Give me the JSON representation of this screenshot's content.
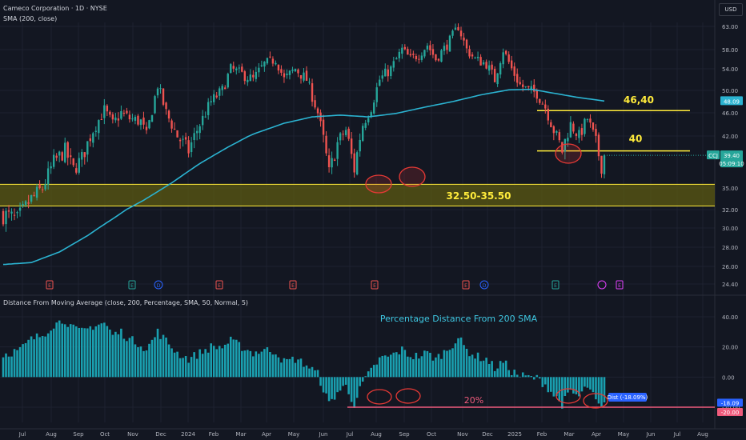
{
  "header": {
    "title": "Cameco Corporation · 1D · NYSE",
    "sma_label": "SMA (200, close)",
    "indicator_label": "Distance From Moving Average (close, 200, Percentage, SMA, 50, Normal, 5)",
    "currency": "USD"
  },
  "colors": {
    "background": "#131722",
    "up": "#26a69a",
    "down": "#ef5350",
    "sma": "#2bb3d1",
    "annotation_line": "#ffeb3b",
    "zone_fill": "#5c5a12",
    "histogram": "#1aa0b0",
    "threshold": "#ef5b7c",
    "circle": "#e53935"
  },
  "chart_data": [
    {
      "type": "candlestick",
      "y_ticks": [
        "63.00",
        "58.00",
        "54.00",
        "50.00",
        "46.00",
        "42.00",
        "35.00",
        "32.00",
        "30.00",
        "28.00",
        "26.00",
        "24.40"
      ],
      "x_ticks": [
        "Jul",
        "Aug",
        "Sep",
        "Oct",
        "Nov",
        "Dec",
        "2024",
        "Feb",
        "Mar",
        "Apr",
        "May",
        "Jun",
        "Jul",
        "Aug",
        "Sep",
        "Oct",
        "Nov",
        "Dec",
        "2025",
        "Feb",
        "Mar",
        "Apr",
        "May",
        "Jun",
        "Jul",
        "Aug"
      ],
      "price_path": [
        [
          0,
          31.5
        ],
        [
          5,
          30.8
        ],
        [
          10,
          33.5
        ],
        [
          14,
          35
        ],
        [
          18,
          38.5
        ],
        [
          22,
          40
        ],
        [
          25,
          37.5
        ],
        [
          28,
          39
        ],
        [
          32,
          43
        ],
        [
          36,
          46.5
        ],
        [
          39,
          44
        ],
        [
          42,
          46
        ],
        [
          45,
          45
        ],
        [
          49,
          44.5
        ],
        [
          51,
          42
        ],
        [
          55,
          51
        ],
        [
          58,
          46
        ],
        [
          62,
          42
        ],
        [
          66,
          40
        ],
        [
          70,
          44
        ],
        [
          74,
          48
        ],
        [
          78,
          50
        ],
        [
          81,
          54
        ],
        [
          85,
          53
        ],
        [
          89,
          52
        ],
        [
          93,
          55
        ],
        [
          97,
          56
        ],
        [
          100,
          52
        ],
        [
          104,
          54
        ],
        [
          108,
          52
        ],
        [
          112,
          46
        ],
        [
          116,
          37
        ],
        [
          119,
          41
        ],
        [
          122,
          43
        ],
        [
          125,
          37.5
        ],
        [
          128,
          44
        ],
        [
          131,
          47
        ],
        [
          134,
          52
        ],
        [
          138,
          54
        ],
        [
          142,
          58
        ],
        [
          145,
          56
        ],
        [
          148,
          57
        ],
        [
          151,
          59
        ],
        [
          154,
          56
        ],
        [
          158,
          59
        ],
        [
          162,
          63
        ],
        [
          165,
          58
        ],
        [
          168,
          56
        ],
        [
          172,
          55
        ],
        [
          175,
          52
        ],
        [
          178,
          58
        ],
        [
          181,
          54
        ],
        [
          184,
          51
        ],
        [
          187,
          50
        ],
        [
          190,
          49.5
        ],
        [
          193,
          47
        ],
        [
          196,
          43
        ],
        [
          199,
          40
        ],
        [
          202,
          44
        ],
        [
          205,
          42
        ],
        [
          208,
          45
        ],
        [
          211,
          41
        ],
        [
          213,
          38
        ],
        [
          214,
          39.4
        ]
      ],
      "sma_path": [
        [
          0,
          26.2
        ],
        [
          10,
          26.4
        ],
        [
          20,
          27.5
        ],
        [
          30,
          29.2
        ],
        [
          40,
          31.2
        ],
        [
          50,
          33.3
        ],
        [
          60,
          35.7
        ],
        [
          70,
          38.3
        ],
        [
          80,
          40.5
        ],
        [
          90,
          42.5
        ],
        [
          100,
          44.2
        ],
        [
          110,
          45.3
        ],
        [
          120,
          45.6
        ],
        [
          130,
          45.3
        ],
        [
          140,
          45.9
        ],
        [
          150,
          47.0
        ],
        [
          160,
          48.0
        ],
        [
          170,
          49.2
        ],
        [
          180,
          50.1
        ],
        [
          188,
          50.2
        ],
        [
          196,
          49.5
        ],
        [
          204,
          48.8
        ],
        [
          214,
          48.1
        ]
      ],
      "annotations": [
        {
          "label": "46,40",
          "value": 46.4
        },
        {
          "label": "40",
          "value": 40.0
        },
        {
          "label": "32.50-35.50",
          "from": 32.5,
          "to": 35.5
        }
      ],
      "price_labels": [
        {
          "text": "48.09",
          "value": 48.09,
          "color": "#2bb3d1"
        },
        {
          "text": "39.40",
          "value": 39.4,
          "color": "#26a69a"
        },
        {
          "text": "05:09:10",
          "value": 38.7,
          "color": "#26a69a"
        }
      ],
      "ticker": "CCJ",
      "events": [
        "E",
        "E",
        "D",
        "E",
        "E",
        "E",
        "E",
        "D",
        "E",
        "E"
      ]
    },
    {
      "type": "bar",
      "title": "Percentage Distance From 200 SMA",
      "y_ticks": [
        "40.00",
        "20.00",
        "0.00",
        "-20.00"
      ],
      "threshold": {
        "label": "20%",
        "value": -20
      },
      "value_labels": [
        {
          "text": "-18.09",
          "value": -18.09
        },
        {
          "text": "-20.00",
          "value": -20.0
        }
      ],
      "tag": "Dist (-18.09%)",
      "values_path": [
        [
          0,
          15
        ],
        [
          6,
          18
        ],
        [
          10,
          25
        ],
        [
          14,
          28
        ],
        [
          18,
          35
        ],
        [
          22,
          38
        ],
        [
          25,
          32
        ],
        [
          28,
          30
        ],
        [
          32,
          34
        ],
        [
          36,
          36
        ],
        [
          39,
          28
        ],
        [
          42,
          30
        ],
        [
          45,
          25
        ],
        [
          49,
          22
        ],
        [
          51,
          18
        ],
        [
          55,
          30
        ],
        [
          58,
          24
        ],
        [
          62,
          16
        ],
        [
          66,
          12
        ],
        [
          70,
          16
        ],
        [
          74,
          20
        ],
        [
          78,
          20
        ],
        [
          81,
          24
        ],
        [
          85,
          20
        ],
        [
          89,
          16
        ],
        [
          93,
          18
        ],
        [
          97,
          17
        ],
        [
          100,
          10
        ],
        [
          104,
          12
        ],
        [
          108,
          8
        ],
        [
          112,
          2
        ],
        [
          116,
          -18
        ],
        [
          119,
          -10
        ],
        [
          122,
          -6
        ],
        [
          125,
          -18
        ],
        [
          128,
          -4
        ],
        [
          131,
          4
        ],
        [
          134,
          12
        ],
        [
          138,
          14
        ],
        [
          142,
          18
        ],
        [
          145,
          14
        ],
        [
          148,
          14
        ],
        [
          151,
          16
        ],
        [
          154,
          12
        ],
        [
          158,
          18
        ],
        [
          162,
          26
        ],
        [
          165,
          18
        ],
        [
          168,
          14
        ],
        [
          172,
          12
        ],
        [
          175,
          6
        ],
        [
          178,
          10
        ],
        [
          181,
          4
        ],
        [
          184,
          1
        ],
        [
          187,
          0
        ],
        [
          190,
          -1
        ],
        [
          193,
          -5
        ],
        [
          196,
          -12
        ],
        [
          199,
          -18
        ],
        [
          202,
          -10
        ],
        [
          205,
          -13
        ],
        [
          208,
          -6
        ],
        [
          211,
          -16
        ],
        [
          213,
          -22
        ],
        [
          214,
          -18
        ]
      ]
    }
  ]
}
